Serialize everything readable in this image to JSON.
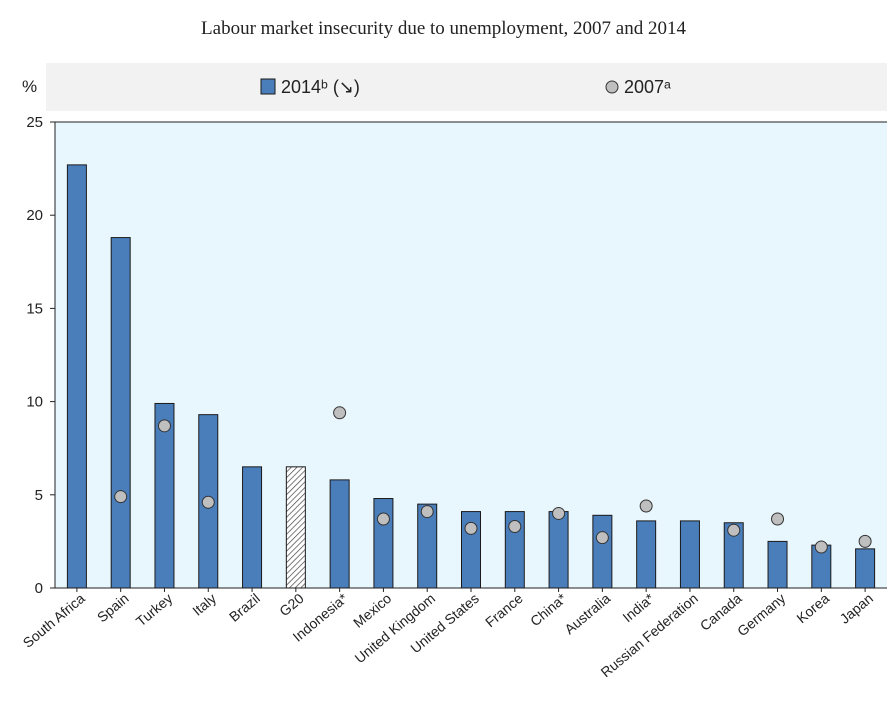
{
  "chart_data": {
    "type": "bar",
    "title": "Labour market insecurity due to unemployment, 2007 and 2014",
    "ylabel": "%",
    "ylim": [
      0,
      25
    ],
    "yticks": [
      0,
      5,
      10,
      15,
      20,
      25
    ],
    "legend": {
      "placement": "top",
      "bar_label": "2014ᵇ (↘)",
      "dot_label": "2007ᵃ"
    },
    "categories": [
      "South Africa",
      "Spain",
      "Turkey",
      "Italy",
      "Brazil",
      "G20",
      "Indonesia*",
      "Mexico",
      "United Kingdom",
      "United States",
      "France",
      "China*",
      "Australia",
      "India*",
      "Russian Federation",
      "Canada",
      "Germany",
      "Korea",
      "Japan"
    ],
    "series": [
      {
        "name": "2014ᵇ (↘)",
        "kind": "bar",
        "values": [
          22.7,
          18.8,
          9.9,
          9.3,
          6.5,
          6.5,
          5.8,
          4.8,
          4.5,
          4.1,
          4.1,
          4.1,
          3.9,
          3.6,
          3.6,
          3.5,
          2.5,
          2.3,
          2.1
        ]
      },
      {
        "name": "2007ᵃ",
        "kind": "dot",
        "values": [
          null,
          4.9,
          8.7,
          4.6,
          null,
          null,
          9.4,
          3.7,
          4.1,
          3.2,
          3.3,
          4.0,
          2.7,
          4.4,
          null,
          3.1,
          3.7,
          2.2,
          2.5
        ]
      }
    ],
    "highlight_category": "G20",
    "colors": {
      "bar": "#4a7ebb",
      "bar_border": "#1a1a1a",
      "dot": "#bfbfbf",
      "plot_background": "#e8f6fd",
      "legend_background": "#f2f2f2"
    },
    "grid": false
  }
}
